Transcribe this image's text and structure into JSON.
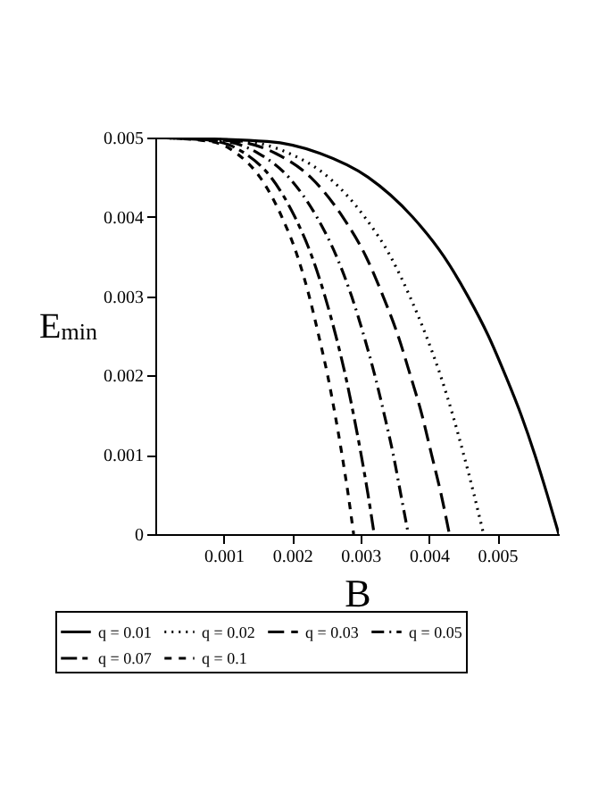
{
  "chart_data": {
    "type": "line",
    "xlabel": "B",
    "ylabel": "E$_{min}$",
    "xlim": [
      0,
      0.0059
    ],
    "xticks": [
      0.001,
      0.002,
      0.003,
      0.004,
      0.005
    ],
    "ylim": [
      0,
      0.005
    ],
    "yticks": [
      0,
      0.001,
      0.002,
      0.003,
      0.004,
      0.005
    ],
    "grid": false,
    "legend": "bottom",
    "series": [
      {
        "name": "q = 0.01",
        "color": "#000000",
        "line_style": "solid",
        "x": [
          0,
          0.00164,
          0.00241,
          0.00311,
          0.00376,
          0.00422,
          0.00457,
          0.00487,
          0.00512,
          0.00535,
          0.00555,
          0.00573,
          0.0059
        ],
        "values": [
          0.005,
          0.00495,
          0.0048,
          0.0045,
          0.004,
          0.0035,
          0.003,
          0.0025,
          0.002,
          0.0015,
          0.001,
          0.0005,
          0
        ]
      },
      {
        "name": "q = 0.02",
        "color": "#000000",
        "line_style": "dotted",
        "x": [
          0,
          0.00133,
          0.00196,
          0.00253,
          0.00306,
          0.00344,
          0.00372,
          0.00396,
          0.00417,
          0.00435,
          0.00451,
          0.00466,
          0.0048
        ],
        "values": [
          0.005,
          0.00495,
          0.0048,
          0.0045,
          0.004,
          0.0035,
          0.003,
          0.0025,
          0.002,
          0.0015,
          0.001,
          0.0005,
          0
        ]
      },
      {
        "name": "q = 0.03",
        "color": "#000000",
        "line_style": "longdash",
        "x": [
          0,
          0.0012,
          0.00176,
          0.00227,
          0.00274,
          0.00308,
          0.00333,
          0.00355,
          0.00373,
          0.0039,
          0.00404,
          0.00418,
          0.0043
        ],
        "values": [
          0.005,
          0.00495,
          0.0048,
          0.0045,
          0.004,
          0.0035,
          0.003,
          0.0025,
          0.002,
          0.0015,
          0.001,
          0.0005,
          0
        ]
      },
      {
        "name": "q = 0.05",
        "color": "#000000",
        "line_style": "dashdot",
        "x": [
          0,
          0.00103,
          0.00151,
          0.00195,
          0.00236,
          0.00265,
          0.00287,
          0.00305,
          0.00321,
          0.00335,
          0.00348,
          0.00359,
          0.0037
        ],
        "values": [
          0.005,
          0.00495,
          0.0048,
          0.0045,
          0.004,
          0.0035,
          0.003,
          0.0025,
          0.002,
          0.0015,
          0.001,
          0.0005,
          0
        ]
      },
      {
        "name": "q = 0.07",
        "color": "#000000",
        "line_style": "longdashdash",
        "x": [
          0,
          0.00089,
          0.00131,
          0.00169,
          0.00204,
          0.00229,
          0.00248,
          0.00264,
          0.00278,
          0.0029,
          0.00301,
          0.00311,
          0.0032
        ],
        "values": [
          0.005,
          0.00495,
          0.0048,
          0.0045,
          0.004,
          0.0035,
          0.003,
          0.0025,
          0.002,
          0.0015,
          0.001,
          0.0005,
          0
        ]
      },
      {
        "name": "q = 0.1",
        "color": "#000000",
        "line_style": "dashed",
        "x": [
          0,
          0.00081,
          0.00119,
          0.00153,
          0.00185,
          0.00208,
          0.00225,
          0.00239,
          0.00252,
          0.00263,
          0.00273,
          0.00282,
          0.0029
        ],
        "values": [
          0.005,
          0.00495,
          0.0048,
          0.0045,
          0.004,
          0.0035,
          0.003,
          0.0025,
          0.002,
          0.0015,
          0.001,
          0.0005,
          0
        ]
      }
    ]
  }
}
